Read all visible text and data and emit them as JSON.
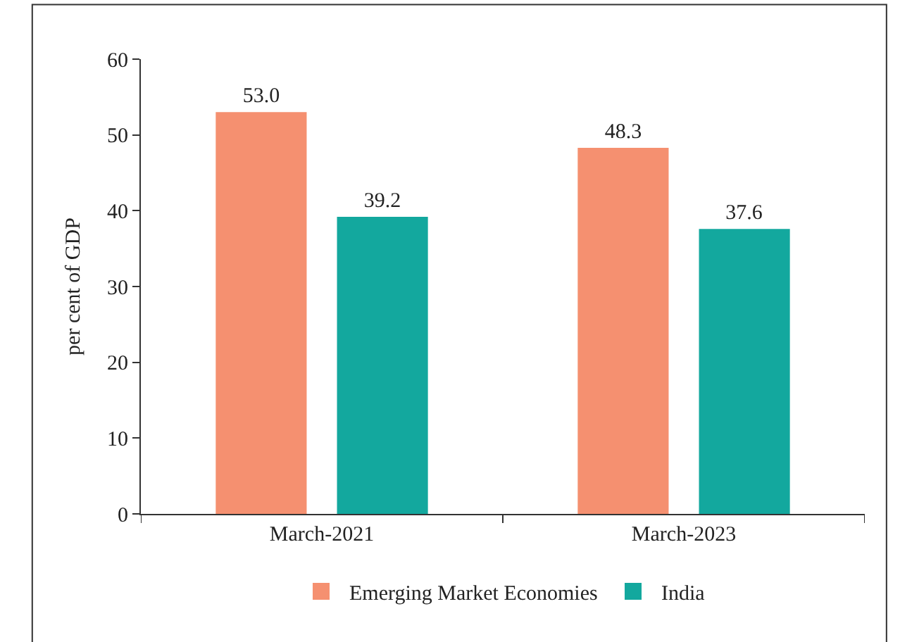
{
  "chart_data": {
    "type": "bar",
    "ylabel": "per cent of GDP",
    "categories": [
      "March-2021",
      "March-2023"
    ],
    "series": [
      {
        "name": "Emerging Market Economies",
        "color": "#f59070",
        "values": [
          53.0,
          48.3
        ],
        "value_labels": [
          "53.0",
          "48.3"
        ]
      },
      {
        "name": "India",
        "color": "#13a89e",
        "values": [
          39.2,
          37.6
        ],
        "value_labels": [
          "39.2",
          "37.6"
        ]
      }
    ],
    "ylim": [
      0,
      60
    ],
    "yticks": [
      0,
      10,
      20,
      30,
      40,
      50,
      60
    ],
    "legend": "bottom"
  }
}
